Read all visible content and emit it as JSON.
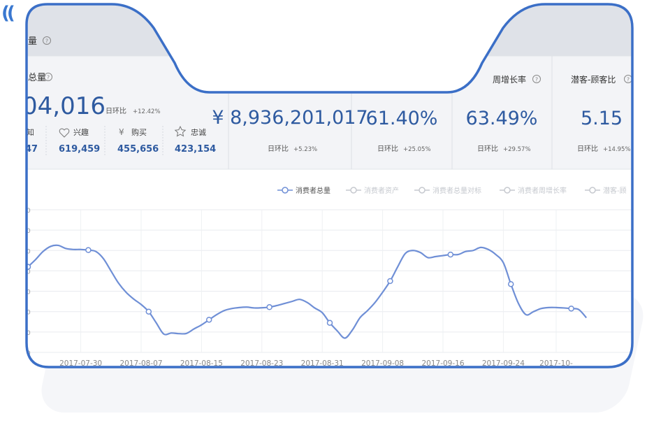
{
  "decor": {
    "ticks": "(("
  },
  "header": {
    "title": "量"
  },
  "summary": {
    "title": "总量",
    "main_value": "04,016",
    "main_ratio_label": "日环比",
    "main_ratio": "+12.42%",
    "breakdown": [
      {
        "label": "知",
        "value": "47",
        "icon": ""
      },
      {
        "label": "兴趣",
        "value": "619,459",
        "icon": "heart-icon"
      },
      {
        "label": "购买",
        "value": "455,656",
        "icon": "yen-icon"
      },
      {
        "label": "忠诚",
        "value": "423,154",
        "icon": "star-icon"
      }
    ]
  },
  "metrics": [
    {
      "title": "",
      "value": "¥ 8,936,201,017",
      "ratio_label": "日环比",
      "ratio": "+5.23%"
    },
    {
      "title": "",
      "value": "61.40%",
      "ratio_label": "日环比",
      "ratio": "+25.05%"
    },
    {
      "title": "周增长率",
      "value": "63.49%",
      "ratio_label": "日环比",
      "ratio": "+29.57%"
    },
    {
      "title": "潜客-顾客比",
      "value": "5.15",
      "ratio_label": "日环比",
      "ratio": "+14.95%"
    }
  ],
  "legend": [
    "消费者总量",
    "消费者资产",
    "消费者总量对标",
    "消费者周增长率",
    "潜客-顾"
  ],
  "colors": {
    "line": "#6f8fd6",
    "frame": "#3b6fc7",
    "muted": "#c6c9cf",
    "text": "#3a3a3a",
    "value": "#2e5aa0"
  },
  "chart_data": {
    "type": "line",
    "x": [
      "2017-07-23",
      "2017-07-24",
      "2017-07-25",
      "2017-07-26",
      "2017-07-27",
      "2017-07-28",
      "2017-07-29",
      "2017-07-30",
      "2017-07-31",
      "2017-08-01",
      "2017-08-02",
      "2017-08-03",
      "2017-08-04",
      "2017-08-05",
      "2017-08-06",
      "2017-08-07",
      "2017-08-08",
      "2017-08-09",
      "2017-08-10",
      "2017-08-11",
      "2017-08-12",
      "2017-08-13",
      "2017-08-14",
      "2017-08-15",
      "2017-08-16",
      "2017-08-17",
      "2017-08-18",
      "2017-08-19",
      "2017-08-20",
      "2017-08-21",
      "2017-08-22",
      "2017-08-23",
      "2017-08-24",
      "2017-08-25",
      "2017-08-26",
      "2017-08-27",
      "2017-08-28",
      "2017-08-29",
      "2017-08-30",
      "2017-08-31",
      "2017-09-01",
      "2017-09-02",
      "2017-09-03",
      "2017-09-04",
      "2017-09-05",
      "2017-09-06",
      "2017-09-07",
      "2017-09-08",
      "2017-09-09",
      "2017-09-10",
      "2017-09-11",
      "2017-09-12",
      "2017-09-13",
      "2017-09-14",
      "2017-09-15",
      "2017-09-16",
      "2017-09-17",
      "2017-09-18",
      "2017-09-19",
      "2017-09-20",
      "2017-09-21",
      "2017-09-22",
      "2017-09-23",
      "2017-09-24",
      "2017-09-25",
      "2017-09-26",
      "2017-09-27",
      "2017-09-28",
      "2017-09-29",
      "2017-09-30",
      "2017-10-01",
      "2017-10-02",
      "2017-10-03",
      "2017-10-04",
      "2017-10-05"
    ],
    "series": [
      {
        "name": "消费者总量",
        "values": [
          4.2,
          4.55,
          4.95,
          5.2,
          5.25,
          5.1,
          5.05,
          5.05,
          5.02,
          4.95,
          4.6,
          4.0,
          3.4,
          2.95,
          2.62,
          2.35,
          2.0,
          1.45,
          0.9,
          0.95,
          0.92,
          0.93,
          1.15,
          1.35,
          1.6,
          1.85,
          2.05,
          2.15,
          2.2,
          2.22,
          2.18,
          2.19,
          2.22,
          2.3,
          2.4,
          2.5,
          2.6,
          2.45,
          2.18,
          1.95,
          1.45,
          1.05,
          0.7,
          1.1,
          1.7,
          2.05,
          2.45,
          2.95,
          3.5,
          4.2,
          4.85,
          5.0,
          4.9,
          4.65,
          4.7,
          4.75,
          4.8,
          4.8,
          4.95,
          5.0,
          5.15,
          5.05,
          4.8,
          4.4,
          3.35,
          2.4,
          1.85,
          2.0,
          2.15,
          2.2,
          2.2,
          2.18,
          2.15,
          2.1,
          1.7
        ]
      }
    ],
    "x_tick_labels": [
      "2017-07-30",
      "2017-08-07",
      "2017-08-15",
      "2017-08-23",
      "2017-08-31",
      "2017-09-08",
      "2017-09-16",
      "2017-09-24",
      "2017-10-"
    ],
    "grid": true,
    "legend": "top-right"
  }
}
